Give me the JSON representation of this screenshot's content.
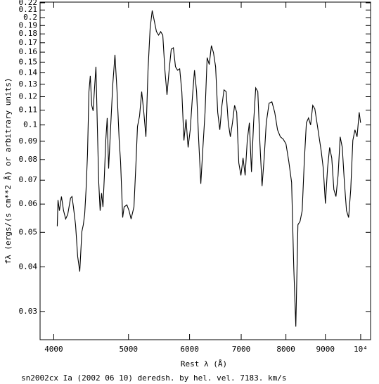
{
  "chart_data": {
    "type": "line",
    "x_label": "Rest λ (Å)",
    "y_label": "fλ (ergs/(s cm**2 Å) or arbitrary units)",
    "caption": "sn2002cx Ia (2002 06 10) deredsh. by hel. vel.  7183. km/s",
    "xlog": true,
    "ylog": true,
    "color": "#000000",
    "xlim": [
      3840,
      10300
    ],
    "ylim": [
      0.025,
      0.221
    ],
    "xticks": [
      4000,
      5000,
      6000,
      7000,
      8000,
      9000,
      {
        "value": 10000,
        "label": "10⁴"
      }
    ],
    "yticks": [
      0.03,
      0.04,
      0.05,
      0.06,
      0.07,
      0.08,
      0.09,
      0.1,
      0.11,
      0.12,
      0.13,
      0.14,
      0.15,
      0.16,
      0.17,
      0.18,
      0.19,
      0.2,
      0.21,
      0.22
    ],
    "x": [
      4042,
      4051,
      4068,
      4093,
      4119,
      4145,
      4171,
      4206,
      4224,
      4242,
      4269,
      4296,
      4323,
      4350,
      4369,
      4387,
      4405,
      4424,
      4443,
      4461,
      4480,
      4499,
      4518,
      4537,
      4556,
      4575,
      4594,
      4614,
      4633,
      4653,
      4672,
      4692,
      4712,
      4741,
      4771,
      4802,
      4832,
      4863,
      4883,
      4914,
      4935,
      4976,
      5008,
      5039,
      5082,
      5114,
      5136,
      5168,
      5201,
      5234,
      5267,
      5300,
      5334,
      5367,
      5401,
      5435,
      5470,
      5504,
      5539,
      5574,
      5609,
      5645,
      5681,
      5717,
      5753,
      5789,
      5826,
      5863,
      5900,
      5937,
      5974,
      6012,
      6050,
      6089,
      6127,
      6166,
      6205,
      6244,
      6284,
      6323,
      6363,
      6404,
      6444,
      6485,
      6526,
      6567,
      6609,
      6650,
      6692,
      6735,
      6777,
      6820,
      6863,
      6907,
      6950,
      6994,
      7039,
      7083,
      7128,
      7173,
      7218,
      7264,
      7310,
      7356,
      7403,
      7450,
      7497,
      7544,
      7608,
      7672,
      7737,
      7802,
      7868,
      7934,
      8001,
      8069,
      8137,
      8189,
      8240,
      8292,
      8345,
      8398,
      8451,
      8504,
      8558,
      8612,
      8667,
      8721,
      8777,
      8832,
      8888,
      8944,
      9001,
      9058,
      9115,
      9173,
      9231,
      9289,
      9348,
      9407,
      9466,
      9526,
      9586,
      9647,
      9708,
      9769,
      9831,
      9893,
      9956,
      9998
    ],
    "values": [
      0.052,
      0.0616,
      0.0575,
      0.063,
      0.0575,
      0.0545,
      0.0562,
      0.0624,
      0.063,
      0.0589,
      0.0525,
      0.0428,
      0.0388,
      0.0502,
      0.0525,
      0.0562,
      0.0659,
      0.0827,
      0.124,
      0.1373,
      0.1135,
      0.1095,
      0.127,
      0.1456,
      0.099,
      0.069,
      0.0575,
      0.0644,
      0.0589,
      0.0722,
      0.0905,
      0.1046,
      0.0755,
      0.099,
      0.13,
      0.1573,
      0.124,
      0.0905,
      0.079,
      0.055,
      0.0589,
      0.0597,
      0.0575,
      0.0545,
      0.0589,
      0.079,
      0.099,
      0.106,
      0.124,
      0.1085,
      0.0926,
      0.1424,
      0.187,
      0.2094,
      0.1955,
      0.1827,
      0.1786,
      0.1827,
      0.1786,
      0.1424,
      0.1215,
      0.1424,
      0.1632,
      0.1646,
      0.1456,
      0.1424,
      0.1437,
      0.124,
      0.0905,
      0.1037,
      0.0865,
      0.0969,
      0.1188,
      0.1424,
      0.124,
      0.0905,
      0.0684,
      0.0865,
      0.1085,
      0.1545,
      0.1477,
      0.1669,
      0.1595,
      0.1456,
      0.1085,
      0.0969,
      0.1135,
      0.1254,
      0.124,
      0.1014,
      0.0926,
      0.1014,
      0.1135,
      0.1085,
      0.0783,
      0.0722,
      0.0808,
      0.0722,
      0.0905,
      0.1014,
      0.0738,
      0.1014,
      0.127,
      0.124,
      0.0885,
      0.0674,
      0.0808,
      0.1014,
      0.1151,
      0.1161,
      0.1085,
      0.0969,
      0.0926,
      0.0913,
      0.0885,
      0.079,
      0.069,
      0.04,
      0.0272,
      0.0525,
      0.0537,
      0.0575,
      0.079,
      0.1014,
      0.1046,
      0.1,
      0.1135,
      0.111,
      0.1014,
      0.0926,
      0.0846,
      0.0755,
      0.0602,
      0.0755,
      0.0865,
      0.0808,
      0.0659,
      0.063,
      0.0722,
      0.0926,
      0.0865,
      0.069,
      0.0575,
      0.055,
      0.0659,
      0.0905,
      0.0969,
      0.0926,
      0.1085,
      0.1014
    ]
  }
}
